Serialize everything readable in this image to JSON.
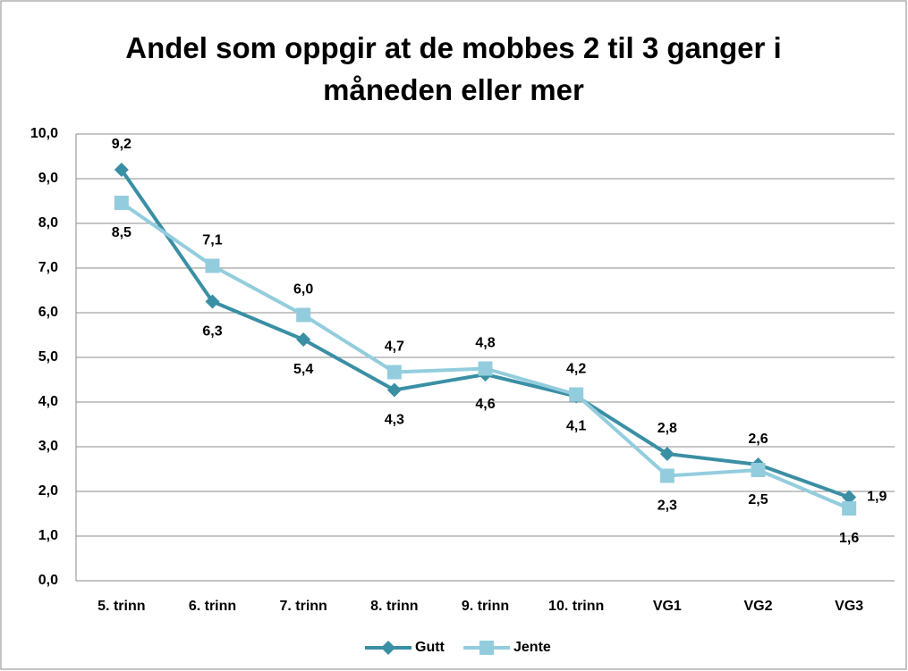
{
  "chart_data": {
    "type": "line",
    "title": "Andel som oppgir at de mobbes 2 til 3 ganger i måneden eller mer",
    "categories": [
      "5. trinn",
      "6. trinn",
      "7. trinn",
      "8. trinn",
      "9. trinn",
      "10. trinn",
      "VG1",
      "VG2",
      "VG3"
    ],
    "series": [
      {
        "name": "Gutt",
        "color": "#3a8fa4",
        "marker": "diamond",
        "values": [
          9.2,
          6.25,
          5.4,
          4.27,
          4.62,
          4.13,
          2.84,
          2.6,
          1.87
        ],
        "value_labels": [
          "9,2",
          "6,3",
          "5,4",
          "4,3",
          "4,6",
          "4,1",
          "2,8",
          "2,6",
          "1,9"
        ]
      },
      {
        "name": "Jente",
        "color": "#93cddd",
        "marker": "square",
        "values": [
          8.46,
          7.05,
          5.95,
          4.67,
          4.75,
          4.17,
          2.35,
          2.48,
          1.62
        ],
        "value_labels": [
          "8,5",
          "7,1",
          "6,0",
          "4,7",
          "4,8",
          "4,2",
          "2,3",
          "2,5",
          "1,6"
        ]
      }
    ],
    "ylim": [
      0,
      10
    ],
    "yticks": [
      {
        "value": 0,
        "label": "0,0"
      },
      {
        "value": 1,
        "label": "1,0"
      },
      {
        "value": 2,
        "label": "2,0"
      },
      {
        "value": 3,
        "label": "3,0"
      },
      {
        "value": 4,
        "label": "4,0"
      },
      {
        "value": 5,
        "label": "5,0"
      },
      {
        "value": 6,
        "label": "6,0"
      },
      {
        "value": 7,
        "label": "7,0"
      },
      {
        "value": 8,
        "label": "8,0"
      },
      {
        "value": 9,
        "label": "9,0"
      },
      {
        "value": 10,
        "label": "10,0"
      }
    ],
    "grid": true,
    "legend": "bottom"
  }
}
